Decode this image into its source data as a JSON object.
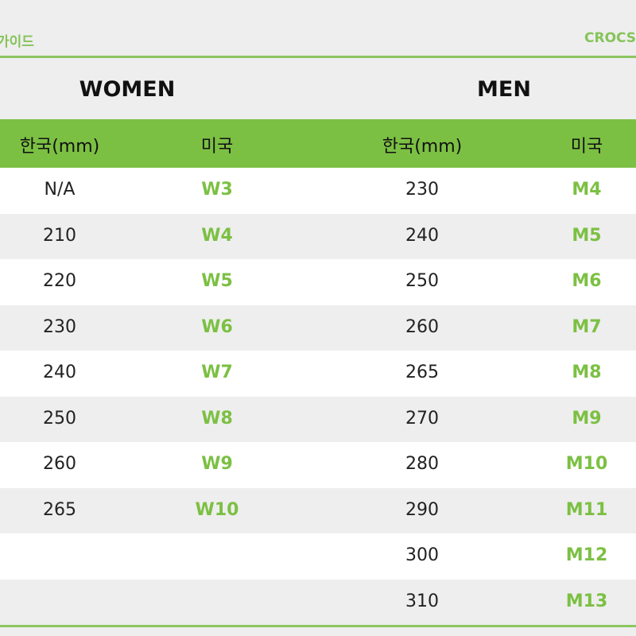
{
  "header": {
    "left": "가이드",
    "right": "CROCS"
  },
  "sections": {
    "women": "WOMEN",
    "men": "MEN"
  },
  "columns": {
    "kr": "한국(mm)",
    "us": "미국"
  },
  "colors": {
    "accent": "#7cc043",
    "row_alt": "#eeeeee"
  },
  "rows": [
    {
      "w_kr": "N/A",
      "w_us": "W3",
      "m_kr": "230",
      "m_us": "M4"
    },
    {
      "w_kr": "210",
      "w_us": "W4",
      "m_kr": "240",
      "m_us": "M5"
    },
    {
      "w_kr": "220",
      "w_us": "W5",
      "m_kr": "250",
      "m_us": "M6"
    },
    {
      "w_kr": "230",
      "w_us": "W6",
      "m_kr": "260",
      "m_us": "M7"
    },
    {
      "w_kr": "240",
      "w_us": "W7",
      "m_kr": "265",
      "m_us": "M8"
    },
    {
      "w_kr": "250",
      "w_us": "W8",
      "m_kr": "270",
      "m_us": "M9"
    },
    {
      "w_kr": "260",
      "w_us": "W9",
      "m_kr": "280",
      "m_us": "M10"
    },
    {
      "w_kr": "265",
      "w_us": "W10",
      "m_kr": "290",
      "m_us": "M11"
    },
    {
      "w_kr": "",
      "w_us": "",
      "m_kr": "300",
      "m_us": "M12"
    },
    {
      "w_kr": "",
      "w_us": "",
      "m_kr": "310",
      "m_us": "M13"
    }
  ]
}
